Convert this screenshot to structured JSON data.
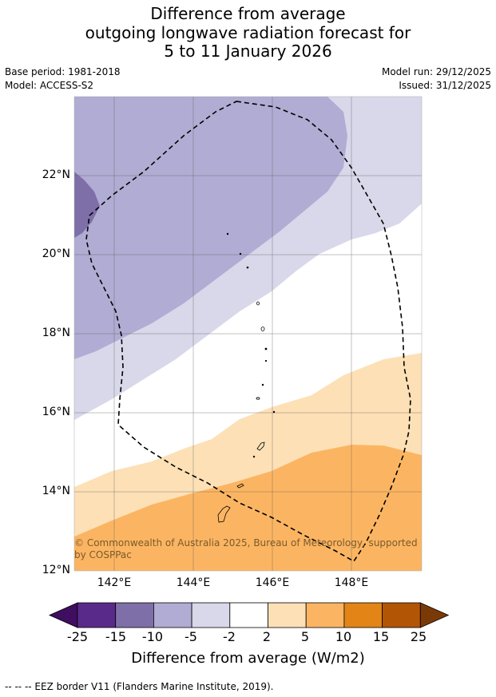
{
  "title": {
    "line1": "Difference from average",
    "line2": "outgoing longwave radiation forecast for",
    "line3": "5 to 11 January 2026"
  },
  "meta": {
    "base_period": "Base period: 1981-2018",
    "model": "Model: ACCESS-S2",
    "model_run": "Model run: 29/12/2025",
    "issued": "Issued: 31/12/2025"
  },
  "map": {
    "lat_labels": [
      "22°N",
      "20°N",
      "18°N",
      "16°N",
      "14°N",
      "12°N"
    ],
    "lon_labels": [
      "142°E",
      "144°E",
      "146°E",
      "148°E"
    ],
    "copyright_line1": "© Commonwealth of Australia 2025, Bureau of Meteorology, supported",
    "copyright_line2": "by COSPPac",
    "colors": {
      "strong_negative": "#7f6fa8",
      "negative": "#b1acd3",
      "weak_negative": "#d8d8ea",
      "neutral": "#ffffff",
      "weak_positive": "#fde0b6",
      "positive": "#fbb562",
      "eez_line": "#000000"
    }
  },
  "colorbar": {
    "ticks": [
      "-25",
      "-15",
      "-10",
      "-5",
      "-2",
      "2",
      "5",
      "10",
      "15",
      "25"
    ],
    "colors": [
      "#3f0e60",
      "#5a2a8a",
      "#7f6fa8",
      "#b1acd3",
      "#d8d8ea",
      "#ffffff",
      "#fde0b6",
      "#fbb562",
      "#e28516",
      "#b25505",
      "#7a3a08"
    ],
    "label": "Difference from average (W/m2)"
  },
  "footnote": "--  --  -- EEZ border V11 (Flanders Marine Institute, 2019)."
}
